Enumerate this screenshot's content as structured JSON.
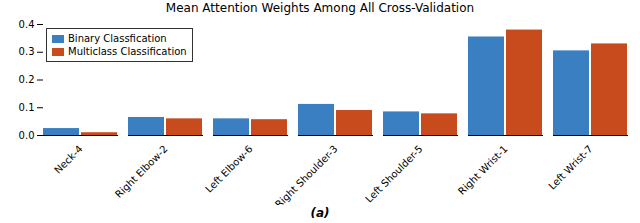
{
  "chart_data": {
    "type": "bar",
    "title": "Mean Attention Weights Among All Cross-Validation",
    "categories": [
      "Neck-4",
      "Right Elbow-2",
      "Left Elbow-6",
      "Right Shoulder-3",
      "Left Shoulder-5",
      "Right Wrist-1",
      "Left Wrist-7"
    ],
    "series": [
      {
        "name": "Binary Classfication",
        "color": "#3a7fc1",
        "values": [
          0.025,
          0.065,
          0.06,
          0.112,
          0.085,
          0.355,
          0.305
        ]
      },
      {
        "name": "Multiclass Classification",
        "color": "#c84b1e",
        "values": [
          0.01,
          0.06,
          0.057,
          0.09,
          0.078,
          0.38,
          0.33
        ]
      }
    ],
    "ylim": [
      0,
      0.4
    ],
    "yticks": [
      {
        "value": 0,
        "label": "0.0"
      },
      0.1,
      0.2,
      0.3,
      0.4
    ],
    "grid": false,
    "legend": "upper left",
    "caption": "(a)"
  }
}
